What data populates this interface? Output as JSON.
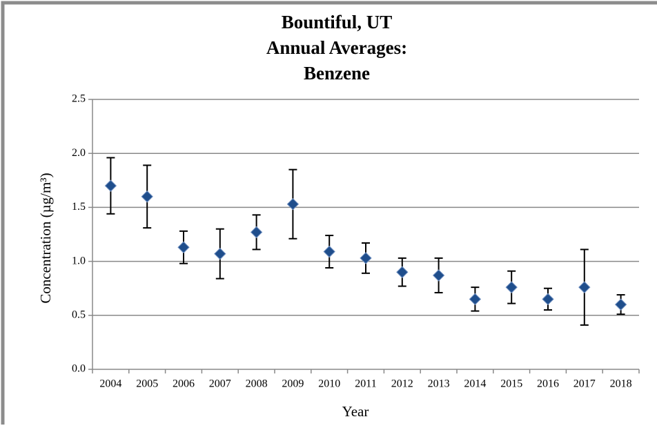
{
  "chart_data": {
    "type": "errorbar-scatter",
    "title": [
      "Bountiful, UT",
      "Annual Averages:",
      "Benzene"
    ],
    "x_label": "Year",
    "y_label": "Concentration (µg/m³)",
    "categories": [
      "2004",
      "2005",
      "2006",
      "2007",
      "2008",
      "2009",
      "2010",
      "2011",
      "2012",
      "2013",
      "2014",
      "2015",
      "2016",
      "2017",
      "2018"
    ],
    "values": [
      1.7,
      1.6,
      1.13,
      1.07,
      1.27,
      1.53,
      1.09,
      1.03,
      0.9,
      0.87,
      0.65,
      0.76,
      0.65,
      0.76,
      0.6
    ],
    "errors": [
      0.26,
      0.29,
      0.15,
      0.23,
      0.16,
      0.32,
      0.15,
      0.14,
      0.13,
      0.16,
      0.11,
      0.15,
      0.1,
      0.35,
      0.09
    ],
    "color": "#1f4e8c",
    "ylim": [
      0,
      2.5
    ],
    "yticks": [
      {
        "value": 0,
        "label": "0.0"
      },
      0.5,
      {
        "value": 1,
        "label": "1.0"
      },
      1.5,
      {
        "value": 2,
        "label": "2.0"
      },
      2.5
    ],
    "grid": true
  }
}
